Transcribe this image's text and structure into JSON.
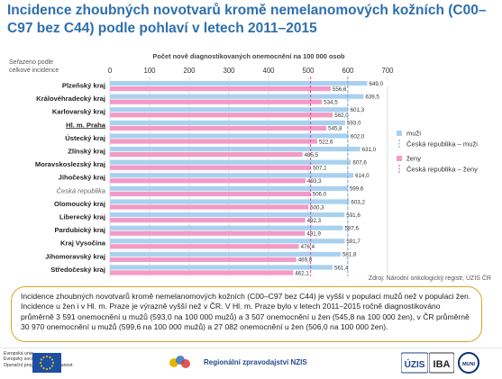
{
  "title": "Incidence zhoubných novotvarů kromě nemelanomových kožních (C00–C97 bez C44) podle pohlaví v letech 2011–2015",
  "source": "Zdroj: Národní onkologický registr, ÚZIS ČR",
  "note": "Incidence zhoubných novotvarů kromě nemelanomových kožních (C00–C97 bez C44) je vyšší v populaci mužů než v populaci žen. Incidence u žen i v Hl. m. Praze je výrazně vyšší než v ČR. V Hl. m. Praze bylo v letech 2011–2015 ročně diagnostikováno průměrně 3 591 onemocnění u mužů (593,0 na 100 000 mužů) a 3 507 onemocnění u žen (545,8 na 100 000 žen), v ČR průměrně 30 970 onemocnění u mužů (599,6 na 100 000 mužů) a 27 082 onemocnění u žen (506,0 na 100 000 žen).",
  "footer": {
    "eu_text": [
      "Evropská unie",
      "Evropský sociální fond",
      "Operační program Zaměstnanost"
    ],
    "nzis_label": "Regionální zpravodajství NZIS",
    "uzis_label": "ÚZIS",
    "iba_label": "IBA",
    "muni_label": "MUNI"
  },
  "colors": {
    "muzi": "#a9d1ef",
    "zeny": "#f39ac6",
    "cr_muzi": "#6ea8dc",
    "cr_zeny": "#d44fa0",
    "title": "#2e6fad"
  },
  "chart_data": {
    "type": "bar",
    "orientation": "horizontal",
    "title": "Počet nově diagnostikovaných onemocnění na 100 000 osob",
    "sort_note": "Seřazeno podle celkové incidence",
    "xlim": [
      0,
      700
    ],
    "xticks": [
      0,
      100,
      200,
      300,
      400,
      500,
      600,
      700
    ],
    "categories": [
      "Plzeňský kraj",
      "Královéhradecký kraj",
      "Karlovarský kraj",
      "Hl. m. Praha",
      "Ústecký kraj",
      "Zlínský kraj",
      "Moravskoslezský kraj",
      "Jihočeský kraj",
      "Česká republika",
      "Olomoucký kraj",
      "Liberecký kraj",
      "Pardubický kraj",
      "Kraj Vysočina",
      "Jihomoravský kraj",
      "Středočeský kraj"
    ],
    "highlighted_category": "Hl. m. Praha",
    "reference_category": "Česká republika",
    "series": [
      {
        "name": "muži",
        "values": [
          649.0,
          639.5,
          601.3,
          593.0,
          602.0,
          631.0,
          607.6,
          614.0,
          599.6,
          603.2,
          591.6,
          587.6,
          591.7,
          581.8,
          561.4
        ],
        "labels": [
          "649,0",
          "639,5",
          "601,3",
          "593,0",
          "602,0",
          "631,0",
          "607,6",
          "614,0",
          "599,6",
          "603,2",
          "591,6",
          "587,6",
          "591,7",
          "581,8",
          "561,4"
        ]
      },
      {
        "name": "ženy",
        "values": [
          556.6,
          534.5,
          562.0,
          545.8,
          522.6,
          485.5,
          507.1,
          493.3,
          506.0,
          500.3,
          492.3,
          491.9,
          476.4,
          469.8,
          462.1
        ],
        "labels": [
          "556,6",
          "534,5",
          "562,0",
          "545,8",
          "522,6",
          "485,5",
          "507,1",
          "493,3",
          "506,0",
          "500,3",
          "492,3",
          "491,9",
          "476,4",
          "469,8",
          "462,1"
        ]
      }
    ],
    "reference_lines": [
      {
        "name": "Česká republika – muži",
        "value": 599.6
      },
      {
        "name": "Česká republika – ženy",
        "value": 506.0
      }
    ],
    "grid": true,
    "legend_position": "right"
  }
}
